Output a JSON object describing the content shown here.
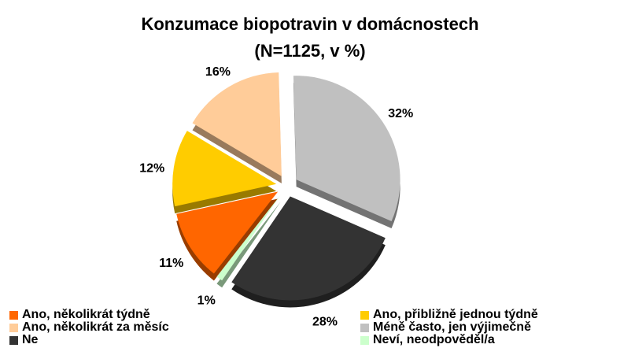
{
  "chart_data": {
    "type": "pie",
    "title": "Konzumace biopotravin v domácnostech",
    "subtitle": "(N=1125, v %)",
    "categories": [
      "Ano, několikrát týdně",
      "Ano, přibližně jednou týdně",
      "Ano, několikrát za měsíc",
      "Méně často, jen výjimečně",
      "Ne",
      "Neví, neodpověděl/a"
    ],
    "values": [
      11,
      12,
      16,
      32,
      28,
      1
    ],
    "value_labels": [
      "11%",
      "12%",
      "16%",
      "32%",
      "28%",
      "1%"
    ],
    "colors": [
      "#ff6600",
      "#ffcc00",
      "#ffcc99",
      "#c0c0c0",
      "#333333",
      "#ccffcc"
    ]
  }
}
